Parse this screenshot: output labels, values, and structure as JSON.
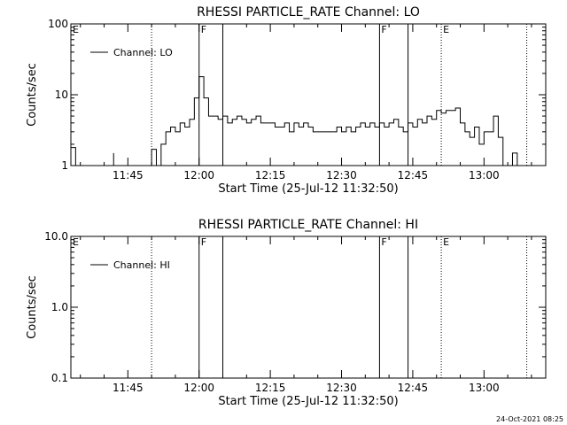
{
  "footer": {
    "timestamp": "24-Oct-2021 08:25"
  },
  "chart_data": [
    {
      "type": "line",
      "title": "RHESSI PARTICLE_RATE Channel: LO",
      "xlabel": "Start Time (25-Jul-12 11:32:50)",
      "ylabel": "Counts/sec",
      "yscale": "log",
      "ylim": [
        1,
        100
      ],
      "xlim": [
        "11:33",
        "13:13"
      ],
      "xticks": [
        "11:45",
        "12:00",
        "12:15",
        "12:30",
        "12:45",
        "13:00"
      ],
      "yticks": [
        "1",
        "10",
        "100"
      ],
      "legend": {
        "position": "top-left",
        "entries": [
          "Channel: LO"
        ]
      },
      "grid": false,
      "markers": [
        {
          "label": "E",
          "style": "dotted",
          "time": "11:33"
        },
        {
          "label": "",
          "style": "dotted",
          "time": "11:50"
        },
        {
          "label": "F",
          "style": "solid",
          "time": "12:00"
        },
        {
          "label": "",
          "style": "solid",
          "time": "12:05"
        },
        {
          "label": "F",
          "style": "solid",
          "time": "12:38"
        },
        {
          "label": "",
          "style": "solid",
          "time": "12:44"
        },
        {
          "label": "E",
          "style": "dotted",
          "time": "12:51"
        },
        {
          "label": "",
          "style": "dotted",
          "time": "13:09"
        }
      ],
      "series": [
        {
          "name": "Channel: LO",
          "x": [
            "11:33",
            "11:34",
            "11:35",
            "11:41",
            "11:42",
            "11:48",
            "11:49",
            "11:50",
            "11:51",
            "11:52",
            "11:53",
            "11:54",
            "11:55",
            "11:56",
            "11:57",
            "11:58",
            "11:59",
            "12:00",
            "12:01",
            "12:02",
            "12:03",
            "12:04",
            "12:05",
            "12:06",
            "12:07",
            "12:08",
            "12:09",
            "12:10",
            "12:11",
            "12:12",
            "12:13",
            "12:14",
            "12:15",
            "12:16",
            "12:17",
            "12:18",
            "12:19",
            "12:20",
            "12:21",
            "12:22",
            "12:23",
            "12:24",
            "12:25",
            "12:26",
            "12:27",
            "12:28",
            "12:29",
            "12:30",
            "12:31",
            "12:32",
            "12:33",
            "12:34",
            "12:35",
            "12:36",
            "12:37",
            "12:38",
            "12:39",
            "12:40",
            "12:41",
            "12:42",
            "12:43",
            "12:44",
            "12:45",
            "12:46",
            "12:47",
            "12:48",
            "12:49",
            "12:50",
            "12:51",
            "12:52",
            "12:53",
            "12:54",
            "12:55",
            "12:56",
            "12:57",
            "12:58",
            "12:59",
            "13:00",
            "13:01",
            "13:02",
            "13:03",
            "13:04",
            "13:05",
            "13:06",
            "13:07",
            "13:08"
          ],
          "values": [
            1.8,
            1,
            1,
            1,
            1.5,
            1,
            1,
            1.7,
            1,
            2,
            3,
            3.5,
            3,
            4,
            3.5,
            4.5,
            9,
            18,
            9,
            5,
            5,
            4.5,
            5,
            4,
            4.5,
            5,
            4.5,
            4,
            4.5,
            5,
            4,
            4,
            4,
            3.5,
            3.5,
            4,
            3,
            4,
            3.5,
            4,
            3.5,
            3,
            3,
            3,
            3,
            3,
            3.5,
            3,
            3.5,
            3,
            3.5,
            4,
            3.5,
            4,
            3.5,
            4,
            3.5,
            4,
            4.5,
            3.5,
            3,
            4,
            3.5,
            4.5,
            4,
            5,
            4.5,
            6,
            5.5,
            6,
            6,
            6.5,
            4,
            3,
            2.5,
            3.5,
            2,
            3,
            3,
            5,
            2.5,
            1,
            1,
            1.5,
            1,
            1
          ]
        }
      ]
    },
    {
      "type": "line",
      "title": "RHESSI PARTICLE_RATE Channel: HI",
      "xlabel": "Start Time (25-Jul-12 11:32:50)",
      "ylabel": "Counts/sec",
      "yscale": "log",
      "ylim": [
        0.1,
        10
      ],
      "xlim": [
        "11:33",
        "13:13"
      ],
      "xticks": [
        "11:45",
        "12:00",
        "12:15",
        "12:30",
        "12:45",
        "13:00"
      ],
      "yticks": [
        "0.1",
        "1.0",
        "10.0"
      ],
      "legend": {
        "position": "top-left",
        "entries": [
          "Channel: HI"
        ]
      },
      "grid": false,
      "markers": [
        {
          "label": "E",
          "style": "dotted",
          "time": "11:33"
        },
        {
          "label": "",
          "style": "dotted",
          "time": "11:50"
        },
        {
          "label": "F",
          "style": "solid",
          "time": "12:00"
        },
        {
          "label": "",
          "style": "solid",
          "time": "12:05"
        },
        {
          "label": "F",
          "style": "solid",
          "time": "12:38"
        },
        {
          "label": "",
          "style": "solid",
          "time": "12:44"
        },
        {
          "label": "E",
          "style": "dotted",
          "time": "12:51"
        },
        {
          "label": "",
          "style": "dotted",
          "time": "13:09"
        }
      ],
      "series": [
        {
          "name": "Channel: HI",
          "x": [],
          "values": []
        }
      ]
    }
  ]
}
